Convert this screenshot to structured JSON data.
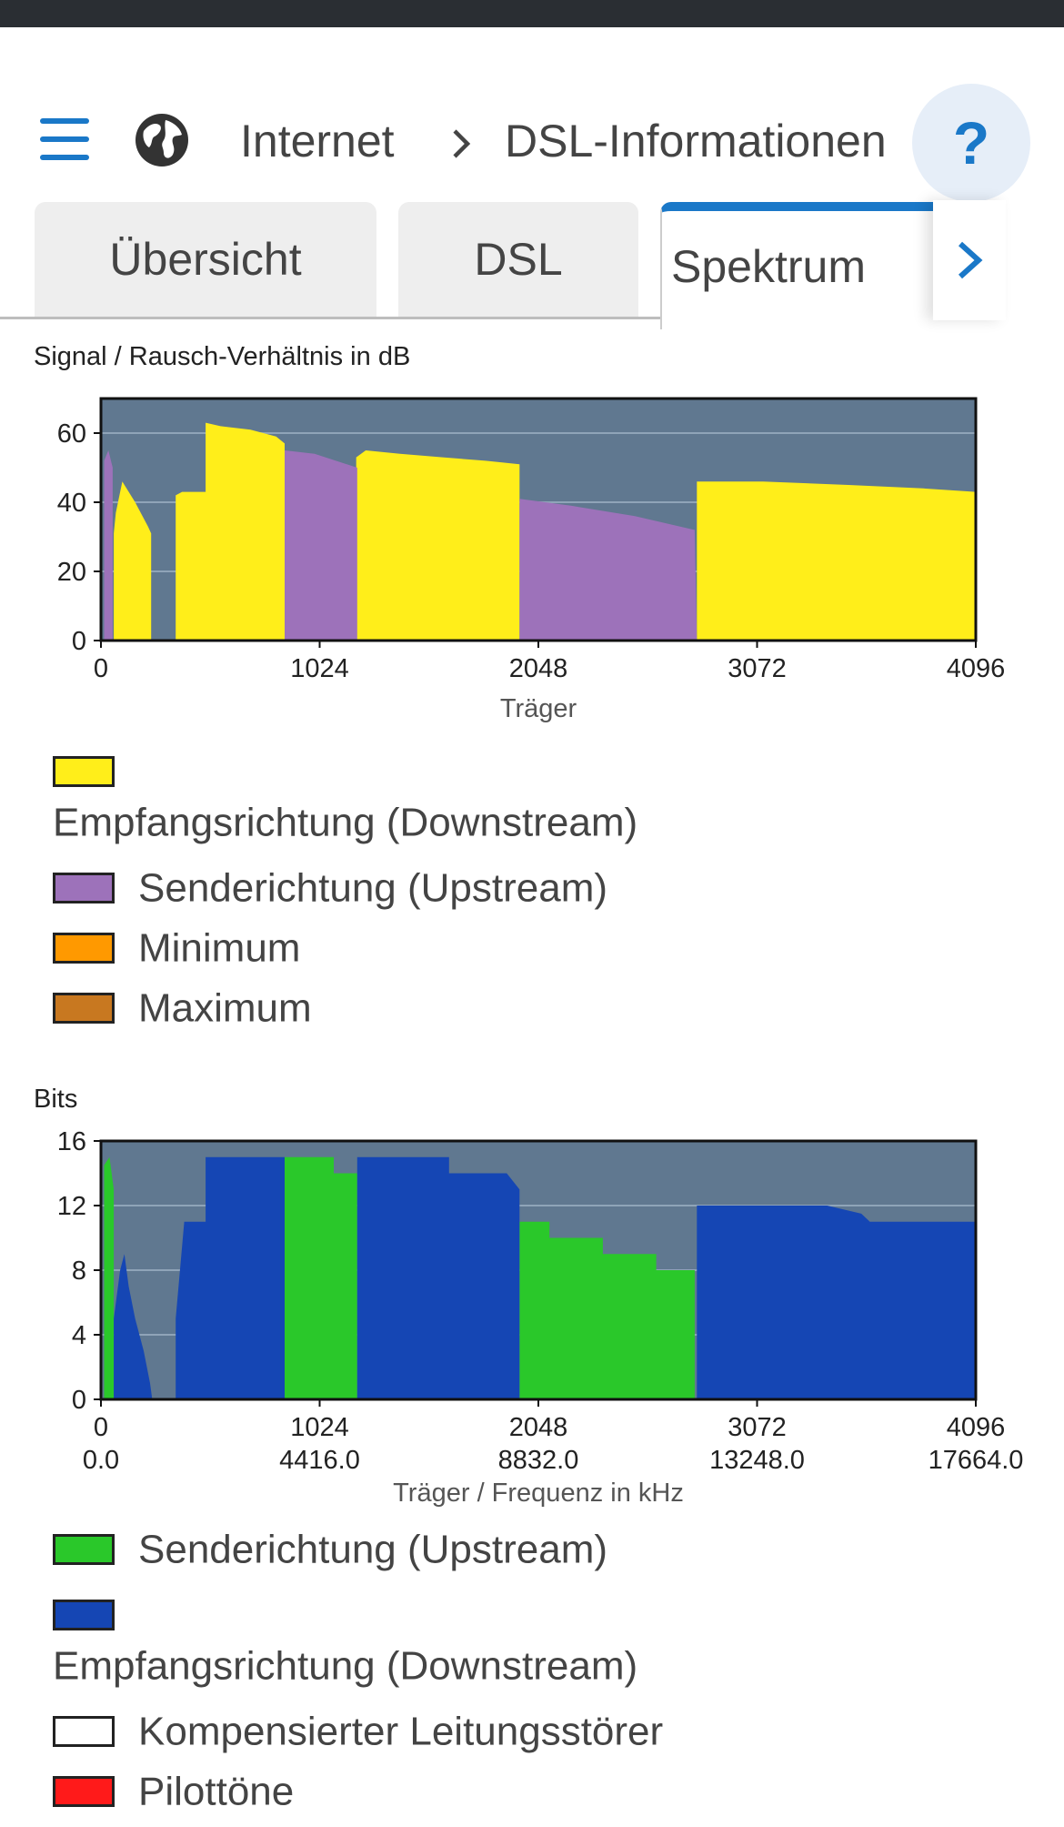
{
  "header": {
    "breadcrumb": [
      "Internet",
      "DSL-Informationen"
    ],
    "help_label": "?",
    "icons": {
      "menu": "menu-icon",
      "globe": "globe-icon",
      "chevron": "chevron-right-icon"
    }
  },
  "tabs": [
    {
      "label": "Übersicht",
      "active": false
    },
    {
      "label": "DSL",
      "active": false
    },
    {
      "label": "Spektrum",
      "active": true
    }
  ],
  "colors": {
    "accent": "#1a78c8",
    "plot_bg": "#607890",
    "downstream_snr": "#ffee1a",
    "upstream_snr": "#9d72ba",
    "upstream_bits": "#2ac82a",
    "downstream_bits": "#1546b4"
  },
  "chart_data": [
    {
      "type": "area",
      "label": "Signal / Rausch-Verhältnis in dB",
      "xlabel": "Träger",
      "xlim": [
        0,
        4096
      ],
      "ylim": [
        0,
        70
      ],
      "xticks": [
        0,
        1024,
        2048,
        3072,
        4096
      ],
      "yticks": [
        0,
        20,
        40,
        60
      ],
      "series": [
        {
          "name": "Empfangsrichtung (Downstream)",
          "color": "#ffee1a",
          "segments": [
            [
              [
                60,
                0
              ],
              [
                60,
                31
              ],
              [
                70,
                37
              ],
              [
                100,
                46
              ],
              [
                160,
                40
              ],
              [
                220,
                33
              ],
              [
                235,
                31
              ],
              [
                235,
                0
              ]
            ],
            [
              [
                350,
                0
              ],
              [
                350,
                42
              ],
              [
                380,
                43
              ],
              [
                420,
                43
              ],
              [
                490,
                43
              ],
              [
                490,
                63
              ],
              [
                560,
                62
              ],
              [
                700,
                61
              ],
              [
                820,
                59
              ],
              [
                860,
                57
              ],
              [
                860,
                0
              ]
            ],
            [
              [
                1195,
                0
              ],
              [
                1195,
                53
              ],
              [
                1240,
                55
              ],
              [
                1400,
                54
              ],
              [
                1600,
                53
              ],
              [
                1800,
                52
              ],
              [
                1960,
                51
              ],
              [
                1960,
                0
              ]
            ],
            [
              [
                2790,
                0
              ],
              [
                2790,
                46
              ],
              [
                3100,
                46
              ],
              [
                3500,
                45
              ],
              [
                3850,
                44
              ],
              [
                4096,
                43
              ],
              [
                4096,
                0
              ]
            ]
          ]
        },
        {
          "name": "Senderichtung (Upstream)",
          "color": "#9d72ba",
          "segments": [
            [
              [
                15,
                0
              ],
              [
                15,
                52
              ],
              [
                35,
                55
              ],
              [
                55,
                50
              ],
              [
                55,
                0
              ]
            ],
            [
              [
                860,
                0
              ],
              [
                860,
                55
              ],
              [
                1000,
                54
              ],
              [
                1200,
                50
              ],
              [
                1200,
                0
              ]
            ],
            [
              [
                1960,
                0
              ],
              [
                1960,
                41
              ],
              [
                2200,
                39
              ],
              [
                2500,
                36
              ],
              [
                2780,
                32
              ],
              [
                2790,
                0
              ]
            ]
          ]
        },
        {
          "name": "Minimum",
          "color": "#ff9900",
          "segments": []
        },
        {
          "name": "Maximum",
          "color": "#c87820",
          "segments": []
        }
      ]
    },
    {
      "type": "area",
      "label": "Bits",
      "xlabel": "Träger / Frequenz in kHz",
      "xlim": [
        0,
        4096
      ],
      "ylim": [
        0,
        16
      ],
      "xticks": [
        0,
        1024,
        2048,
        3072,
        4096
      ],
      "xticks_secondary": [
        "0.0",
        "4416.0",
        "8832.0",
        "13248.0",
        "17664.0"
      ],
      "yticks": [
        0,
        4,
        8,
        12,
        16
      ],
      "series": [
        {
          "name": "Senderichtung (Upstream)",
          "color": "#2ac82a",
          "segments": [
            [
              [
                15,
                0
              ],
              [
                15,
                14.5
              ],
              [
                40,
                15
              ],
              [
                60,
                13
              ],
              [
                60,
                0
              ]
            ],
            [
              [
                860,
                0
              ],
              [
                860,
                15
              ],
              [
                1090,
                15
              ],
              [
                1090,
                14
              ],
              [
                1200,
                14
              ],
              [
                1200,
                0
              ]
            ],
            [
              [
                1960,
                0
              ],
              [
                1960,
                11
              ],
              [
                2100,
                11
              ],
              [
                2100,
                10
              ],
              [
                2350,
                10
              ],
              [
                2350,
                9
              ],
              [
                2600,
                9
              ],
              [
                2600,
                8
              ],
              [
                2780,
                8
              ],
              [
                2780,
                0
              ]
            ]
          ]
        },
        {
          "name": "Empfangsrichtung (Downstream)",
          "color": "#1546b4",
          "segments": [
            [
              [
                60,
                0
              ],
              [
                60,
                5
              ],
              [
                90,
                8
              ],
              [
                110,
                9
              ],
              [
                130,
                7
              ],
              [
                160,
                5
              ],
              [
                200,
                3
              ],
              [
                230,
                1
              ],
              [
                240,
                0
              ]
            ],
            [
              [
                350,
                0
              ],
              [
                350,
                5
              ],
              [
                390,
                11
              ],
              [
                490,
                11
              ],
              [
                490,
                15
              ],
              [
                860,
                15
              ],
              [
                860,
                0
              ]
            ],
            [
              [
                1200,
                0
              ],
              [
                1200,
                15
              ],
              [
                1630,
                15
              ],
              [
                1630,
                14
              ],
              [
                1900,
                14
              ],
              [
                1960,
                13
              ],
              [
                1960,
                0
              ]
            ],
            [
              [
                2790,
                0
              ],
              [
                2790,
                12
              ],
              [
                3400,
                12
              ],
              [
                3560,
                11.5
              ],
              [
                3600,
                11
              ],
              [
                4096,
                11
              ],
              [
                4096,
                0
              ]
            ]
          ]
        },
        {
          "name": "Kompensierter Leitungsstörer",
          "color": "#ffffff",
          "segments": []
        },
        {
          "name": "Pilottöne",
          "color": "#ff1a1a",
          "segments": []
        }
      ]
    }
  ]
}
